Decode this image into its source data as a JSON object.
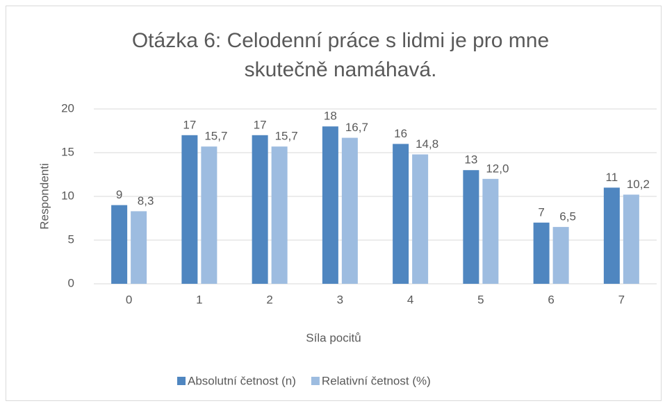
{
  "chart_data": {
    "type": "bar",
    "title": [
      "Otázka 6: Celodenní práce s lidmi je pro mne",
      "skutečně namáhavá."
    ],
    "x_label": "Síla pocitů",
    "y_label": "Respondenti",
    "categories": [
      "0",
      "1",
      "2",
      "3",
      "4",
      "5",
      "6",
      "7"
    ],
    "series": [
      {
        "name": "Absolutní četnost (n)",
        "color": "#4f86c0",
        "values": [
          9,
          17,
          17,
          18,
          16,
          13,
          7,
          11
        ]
      },
      {
        "name": "Relativní četnost (%)",
        "color": "#9dbce0",
        "values": [
          8.3,
          15.7,
          15.7,
          16.7,
          14.8,
          12.0,
          6.5,
          10.2
        ],
        "value_labels": [
          "8,3",
          "15,7",
          "15,7",
          "16,7",
          "14,8",
          "12,0",
          "6,5",
          "10,2"
        ]
      }
    ],
    "ylim": [
      0,
      20
    ],
    "yticks": [
      0,
      5,
      10,
      15,
      20
    ],
    "grid": true,
    "legend": "bottom"
  }
}
